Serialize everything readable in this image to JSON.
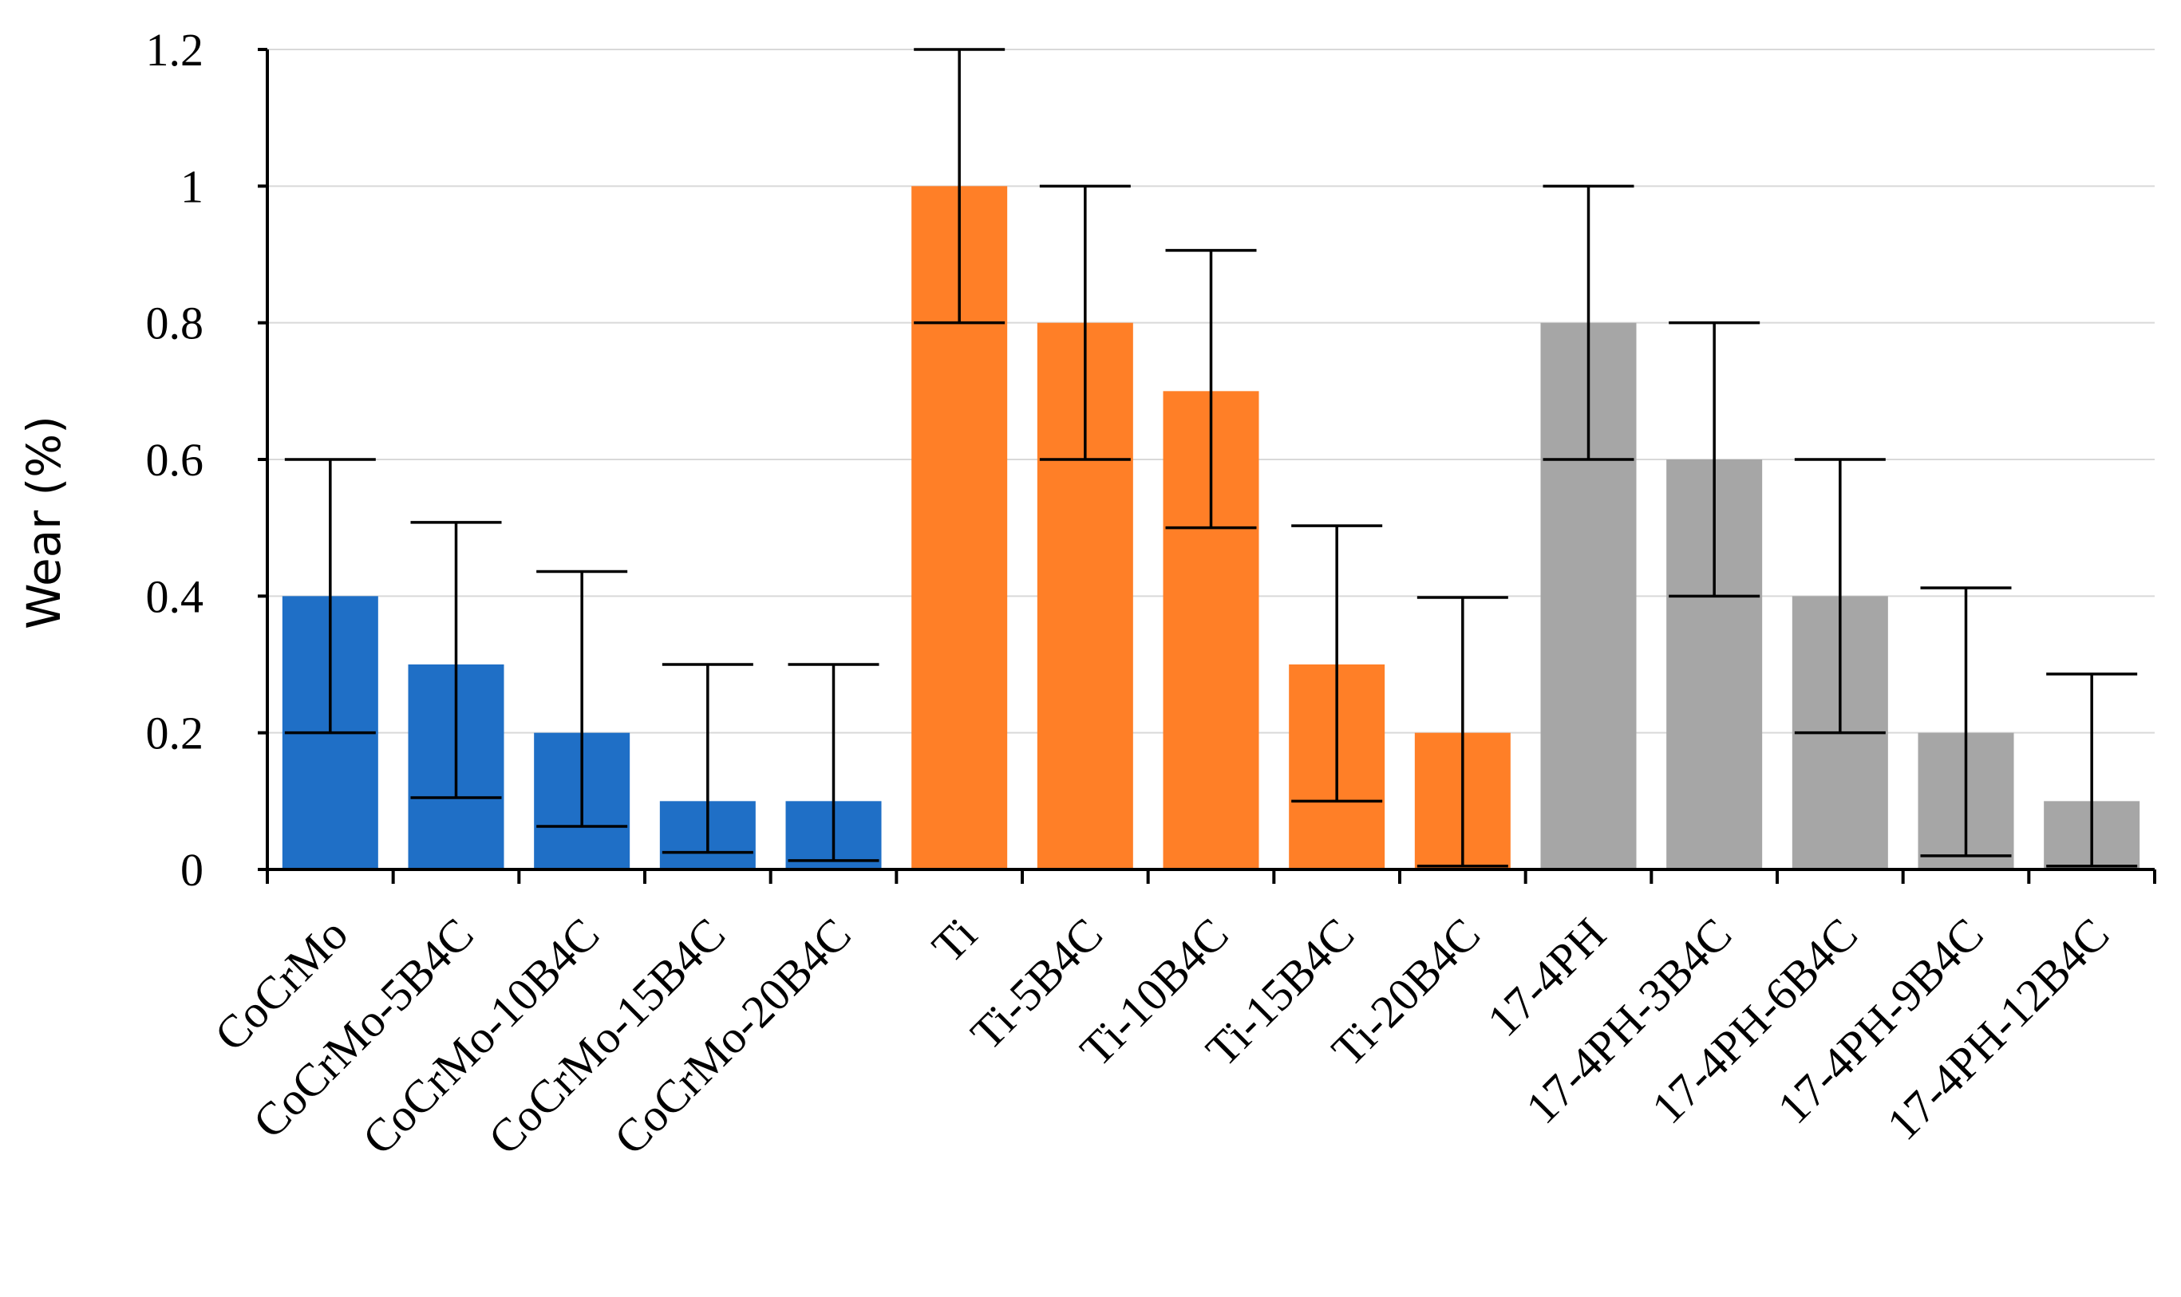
{
  "chart_data": {
    "type": "bar",
    "title": "",
    "xlabel": "",
    "ylabel": "Wear (%)",
    "ylim": [
      0,
      1.2
    ],
    "yticks": [
      {
        "value": 0,
        "label": "0"
      },
      {
        "value": 0.2,
        "label": "0.2"
      },
      {
        "value": 0.4,
        "label": "0.4"
      },
      {
        "value": 0.6,
        "label": "0.6"
      },
      {
        "value": 0.8,
        "label": "0.8"
      },
      {
        "value": 1,
        "label": "1"
      },
      {
        "value": 1.2,
        "label": "1.2"
      }
    ],
    "grid": true,
    "legend": "none",
    "categories": [
      "CoCrMo",
      "CoCrMo-5B4C",
      "CoCrMo-10B4C",
      "CoCrMo-15B4C",
      "CoCrMo-20B4C",
      "Ti",
      "Ti-5B4C",
      "Ti-10B4C",
      "Ti-15B4C",
      "Ti-20B4C",
      "17-4PH",
      "17-4PH-3B4C",
      "17-4PH-6B4C",
      "17-4PH-9B4C",
      "17-4PH-12B4C"
    ],
    "values": [
      0.4,
      0.3,
      0.2,
      0.1,
      0.1,
      1.0,
      0.8,
      0.7,
      0.3,
      0.2,
      0.8,
      0.6,
      0.4,
      0.2,
      0.1
    ],
    "error_low": [
      0.2,
      0.105,
      0.063,
      0.025,
      0.013,
      0.8,
      0.6,
      0.5,
      0.1,
      0.005,
      0.6,
      0.4,
      0.2,
      0.02,
      0.005
    ],
    "error_high": [
      0.6,
      0.508,
      0.436,
      0.3,
      0.3,
      1.2,
      1.0,
      0.906,
      0.503,
      0.398,
      1.0,
      0.8,
      0.6,
      0.412,
      0.286
    ],
    "colors": [
      "#1f6fc6",
      "#1f6fc6",
      "#1f6fc6",
      "#1f6fc6",
      "#1f6fc6",
      "#ff7f27",
      "#ff7f27",
      "#ff7f27",
      "#ff7f27",
      "#ff7f27",
      "#a6a6a6",
      "#a6a6a6",
      "#a6a6a6",
      "#a6a6a6",
      "#a6a6a6"
    ]
  }
}
